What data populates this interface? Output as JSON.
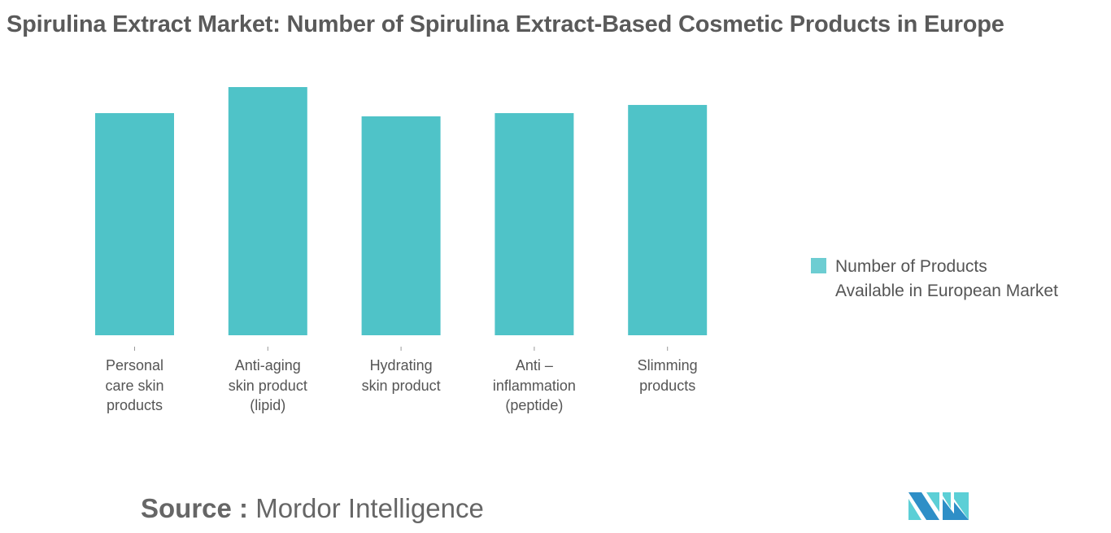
{
  "title": "Spirulina Extract Market: Number of Spirulina Extract-Based Cosmetic Products in Europe",
  "chart_data": {
    "type": "bar",
    "title": "Spirulina Extract Market: Number of Spirulina Extract-Based Cosmetic Products in Europe",
    "categories": [
      "Personal care skin products",
      "Anti-aging skin product (lipid)",
      "Hydrating skin product",
      "Anti – inflammation (peptide)",
      "Slimming products"
    ],
    "category_lines": [
      [
        "Personal",
        "care skin",
        "products"
      ],
      [
        "Anti-aging",
        "skin product",
        "(lipid)"
      ],
      [
        "Hydrating",
        "skin product"
      ],
      [
        "Anti –",
        "inflammation",
        "(peptide)"
      ],
      [
        "Slimming",
        "products"
      ]
    ],
    "series": [
      {
        "name": "Number of Products Available in European Market",
        "values": [
          89.5,
          100,
          88.2,
          89.5,
          92.8
        ],
        "color": "#4fc3c8"
      }
    ],
    "value_note": "relative values (no axis shown)",
    "ylim": [
      0,
      100
    ],
    "xlabel": "",
    "ylabel": "",
    "grid": false,
    "legend": {
      "position": "right",
      "lines": [
        "Number of Products",
        "Available in European Market"
      ]
    }
  },
  "source": {
    "label": "Source :",
    "value": "Mordor Intelligence"
  },
  "logo": {
    "text": "MI",
    "colors": [
      "#2e8fc7",
      "#5ccfd6"
    ]
  }
}
